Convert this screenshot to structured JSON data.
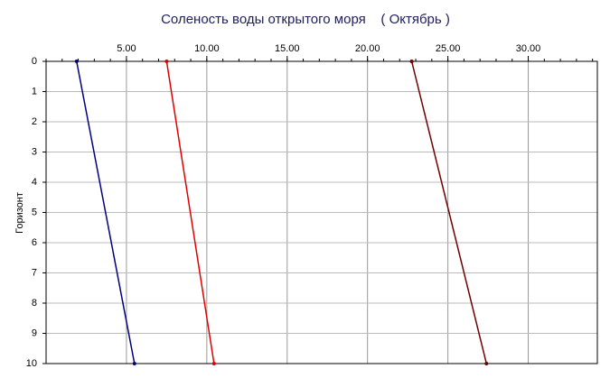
{
  "chart_data": {
    "type": "line",
    "orientation": "horizontal",
    "title": "Соленость воды открытого моря    ( Октябрь )",
    "ylabel": "Горизонт",
    "y": [
      0,
      10
    ],
    "series": [
      {
        "color": "#000080",
        "values": [
          1.9,
          5.5
        ]
      },
      {
        "color": "#e00000",
        "values": [
          7.5,
          10.45
        ]
      },
      {
        "color": "#700000",
        "values": [
          22.75,
          27.4
        ]
      }
    ],
    "xlim": [
      0,
      34.3
    ],
    "ylim": [
      0,
      10
    ],
    "xticks": [
      {
        "value": 5,
        "label": "5.00"
      },
      {
        "value": 10,
        "label": "10.00"
      },
      {
        "value": 15,
        "label": "15.00"
      },
      {
        "value": 20,
        "label": "20.00"
      },
      {
        "value": 25,
        "label": "25.00"
      },
      {
        "value": 30,
        "label": "30.00"
      }
    ],
    "yticks": [
      0,
      1,
      2,
      3,
      4,
      5,
      6,
      7,
      8,
      9,
      10
    ],
    "grid": true
  }
}
